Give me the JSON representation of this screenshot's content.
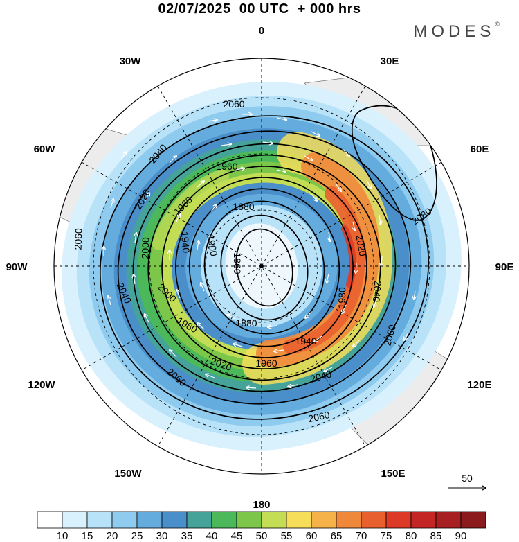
{
  "title": "02/07/2025  00 UTC  + 000 hrs",
  "brand": "MODES",
  "brand_mark": "©",
  "longitude_labels": {
    "lon_0": "0",
    "lon_30e": "30E",
    "lon_60e": "60E",
    "lon_90e": "90E",
    "lon_120e": "120E",
    "lon_150e": "150E",
    "lon_180": "180",
    "lon_150w": "150W",
    "lon_120w": "120W",
    "lon_90w": "90W",
    "lon_60w": "60W",
    "lon_30w": "30W"
  },
  "contour_labels": {
    "c1860": "1860",
    "c1880a": "1880",
    "c1880b": "1880",
    "c1900": "1900",
    "c1940a": "1940",
    "c1940b": "1940",
    "c1960a": "1960",
    "c1960b": "1960",
    "c1960c": "1960",
    "c1980a": "1980",
    "c1980b": "1980",
    "c2000a": "2000",
    "c2000b": "2000",
    "c2020a": "2020",
    "c2020b": "2020",
    "c2020c": "2020",
    "c2040a": "2040",
    "c2040b": "2040",
    "c2040c": "2040",
    "c2040d": "2040",
    "c2060a": "2060",
    "c2060b": "2060",
    "c2060c": "2060",
    "c2060d": "2060",
    "c2060e": "2060",
    "c2080": "2080"
  },
  "reference_vector": {
    "label": "50",
    "value": 50
  },
  "colorbar": {
    "ticks": [
      "10",
      "15",
      "20",
      "25",
      "30",
      "35",
      "40",
      "45",
      "50",
      "55",
      "60",
      "65",
      "70",
      "75",
      "80",
      "85",
      "90"
    ],
    "colors": [
      "#ffffff",
      "#d9f1fd",
      "#b7e2f8",
      "#8ecbee",
      "#64acde",
      "#4a8fc9",
      "#46a39a",
      "#4bb85a",
      "#7cc74a",
      "#c3dd55",
      "#f6de5a",
      "#f4b248",
      "#f0883c",
      "#e9602f",
      "#dc3a27",
      "#c42626",
      "#a81f22",
      "#8a1a1c"
    ]
  }
}
